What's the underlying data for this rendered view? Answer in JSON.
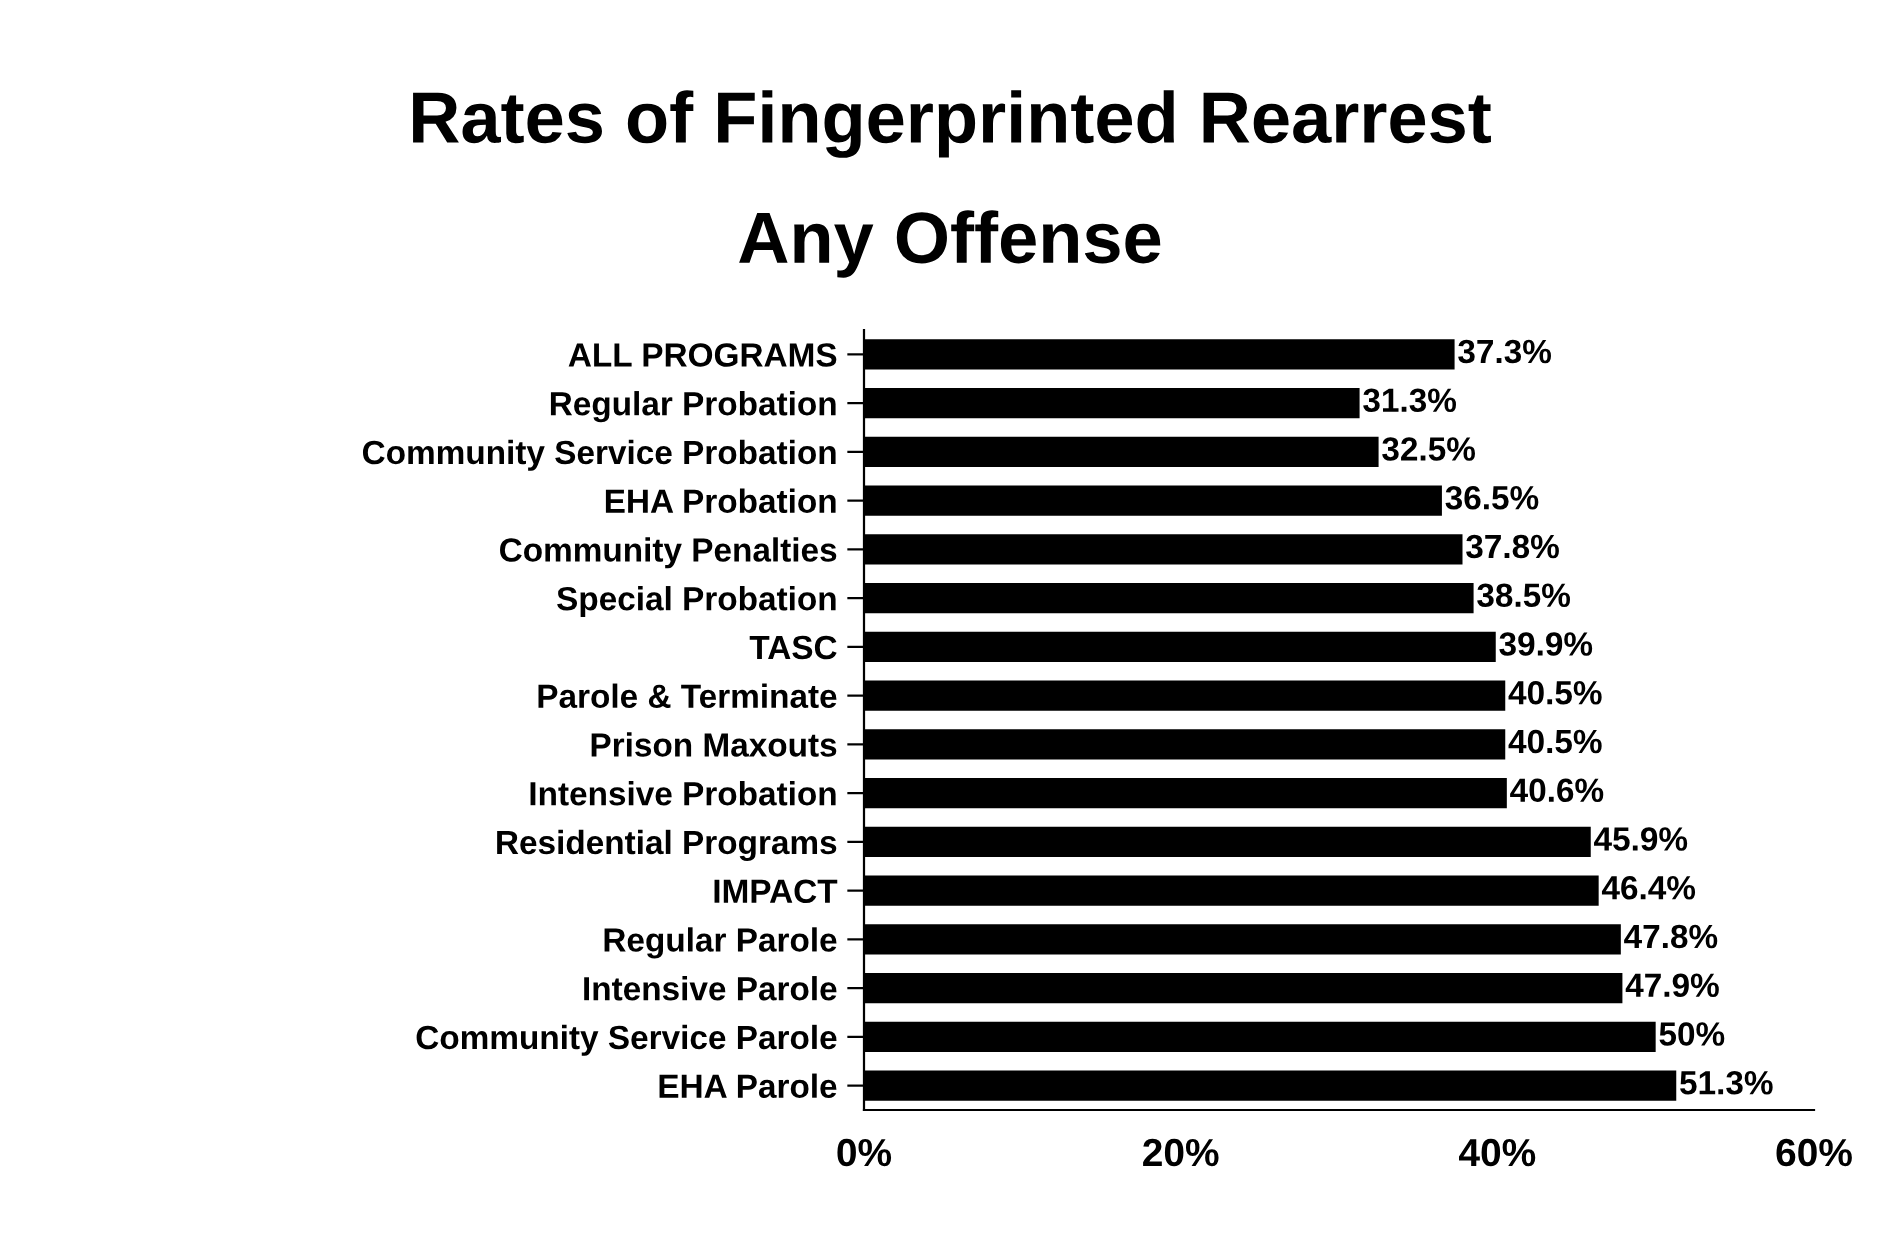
{
  "chart_data": {
    "type": "bar",
    "orientation": "horizontal",
    "title": "Rates of Fingerprinted Rearrest",
    "subtitle": "Any Offense",
    "categories": [
      "ALL PROGRAMS",
      "Regular Probation",
      "Community Service Probation",
      "EHA Probation",
      "Community Penalties",
      "Special Probation",
      "TASC",
      "Parole & Terminate",
      "Prison Maxouts",
      "Intensive Probation",
      "Residential Programs",
      "IMPACT",
      "Regular Parole",
      "Intensive Parole",
      "Community Service Parole",
      "EHA Parole"
    ],
    "values": [
      37.3,
      31.3,
      32.5,
      36.5,
      37.8,
      38.5,
      39.9,
      40.5,
      40.5,
      40.6,
      45.9,
      46.4,
      47.8,
      47.9,
      50,
      51.3
    ],
    "value_labels": [
      "37.3%",
      "31.3%",
      "32.5%",
      "36.5%",
      "37.8%",
      "38.5%",
      "39.9%",
      "40.5%",
      "40.5%",
      "40.6%",
      "45.9%",
      "46.4%",
      "47.8%",
      "47.9%",
      "50%",
      "51.3%"
    ],
    "color": "#000000",
    "xlim": [
      0,
      60
    ],
    "xticks": [
      {
        "value": 0,
        "label": "0%"
      },
      {
        "value": 20,
        "label": "20%"
      },
      {
        "value": 40,
        "label": "40%"
      },
      {
        "value": 60,
        "label": "60%"
      }
    ],
    "grid": false,
    "legend": false
  }
}
